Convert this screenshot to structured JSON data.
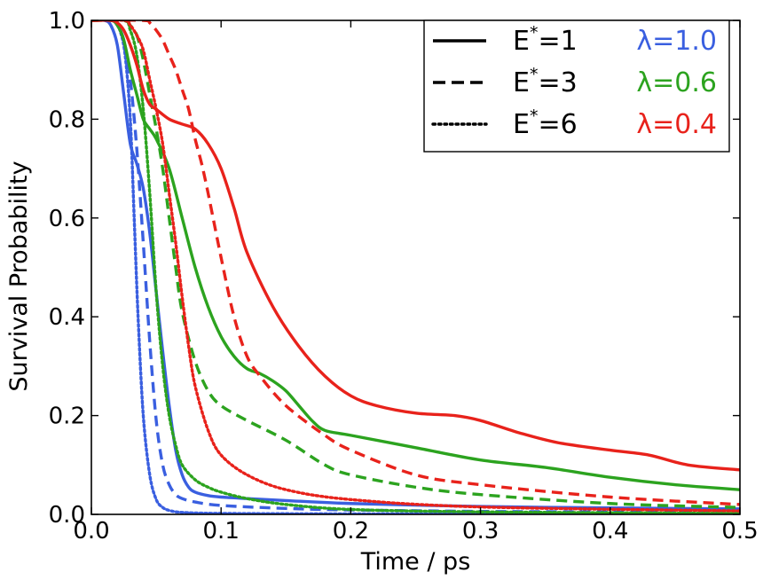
{
  "chart_data": {
    "type": "line",
    "title": "",
    "xlabel": "Time / ps",
    "ylabel": "Survival Probability",
    "xlim": [
      0.0,
      0.5
    ],
    "ylim": [
      0.0,
      1.0
    ],
    "grid": false,
    "x_ticks": [
      0.0,
      0.1,
      0.2,
      0.3,
      0.4,
      0.5
    ],
    "x_tick_labels": [
      "0.0",
      "0.1",
      "0.2",
      "0.3",
      "0.4",
      "0.5"
    ],
    "y_ticks": [
      0.0,
      0.2,
      0.4,
      0.6,
      0.8,
      1.0
    ],
    "y_tick_labels": [
      "0.0",
      "0.2",
      "0.4",
      "0.6",
      "0.8",
      "1.0"
    ],
    "legend": {
      "placement": "top-right",
      "style_entries": [
        {
          "label": "E*=1",
          "base": "E",
          "sup": "*",
          "rest": "=1",
          "style": "solid"
        },
        {
          "label": "E*=3",
          "base": "E",
          "sup": "*",
          "rest": "=3",
          "style": "dashed"
        },
        {
          "label": "E*=6",
          "base": "E",
          "sup": "*",
          "rest": "=6",
          "style": "dotted"
        }
      ],
      "color_entries": [
        {
          "label": "λ=1.0",
          "color": "#3a5fe0"
        },
        {
          "label": "λ=0.6",
          "color": "#2ca31f"
        },
        {
          "label": "λ=0.4",
          "color": "#e8221b"
        }
      ]
    },
    "series": [
      {
        "name": "E*=1, λ=1.0",
        "color": "#3a5fe0",
        "style": "solid",
        "x": [
          0,
          0.01,
          0.015,
          0.02,
          0.025,
          0.03,
          0.035,
          0.04,
          0.045,
          0.05,
          0.055,
          0.06,
          0.065,
          0.07,
          0.075,
          0.08,
          0.09,
          0.1,
          0.12,
          0.15,
          0.2,
          0.3,
          0.4,
          0.5
        ],
        "y": [
          1.0,
          1.0,
          0.99,
          0.95,
          0.85,
          0.75,
          0.71,
          0.66,
          0.57,
          0.45,
          0.33,
          0.22,
          0.13,
          0.08,
          0.055,
          0.045,
          0.038,
          0.035,
          0.032,
          0.028,
          0.022,
          0.016,
          0.013,
          0.011
        ]
      },
      {
        "name": "E*=3, λ=1.0",
        "color": "#3a5fe0",
        "style": "dashed",
        "x": [
          0,
          0.015,
          0.02,
          0.025,
          0.03,
          0.035,
          0.04,
          0.045,
          0.05,
          0.055,
          0.06,
          0.065,
          0.07,
          0.08,
          0.1,
          0.15,
          0.2,
          0.3,
          0.4,
          0.5
        ],
        "y": [
          1.0,
          1.0,
          0.99,
          0.96,
          0.88,
          0.74,
          0.55,
          0.35,
          0.19,
          0.1,
          0.06,
          0.04,
          0.032,
          0.025,
          0.018,
          0.012,
          0.009,
          0.006,
          0.005,
          0.004
        ]
      },
      {
        "name": "E*=6, λ=1.0",
        "color": "#3a5fe0",
        "style": "dotted",
        "x": [
          0,
          0.018,
          0.022,
          0.026,
          0.03,
          0.033,
          0.036,
          0.04,
          0.045,
          0.05,
          0.055,
          0.06,
          0.07,
          0.1,
          0.2,
          0.3,
          0.5
        ],
        "y": [
          1.0,
          1.0,
          0.98,
          0.93,
          0.8,
          0.6,
          0.4,
          0.2,
          0.08,
          0.03,
          0.014,
          0.008,
          0.004,
          0.002,
          0.001,
          0.001,
          0.001
        ]
      },
      {
        "name": "E*=1, λ=0.6",
        "color": "#2ca31f",
        "style": "solid",
        "x": [
          0,
          0.015,
          0.02,
          0.025,
          0.03,
          0.035,
          0.04,
          0.045,
          0.05,
          0.06,
          0.07,
          0.08,
          0.09,
          0.1,
          0.11,
          0.12,
          0.13,
          0.14,
          0.15,
          0.16,
          0.17,
          0.18,
          0.2,
          0.25,
          0.3,
          0.35,
          0.4,
          0.45,
          0.5
        ],
        "y": [
          1.0,
          1.0,
          0.99,
          0.96,
          0.9,
          0.85,
          0.8,
          0.78,
          0.76,
          0.7,
          0.6,
          0.5,
          0.42,
          0.36,
          0.32,
          0.295,
          0.285,
          0.27,
          0.25,
          0.22,
          0.19,
          0.17,
          0.16,
          0.135,
          0.11,
          0.095,
          0.075,
          0.06,
          0.05
        ]
      },
      {
        "name": "E*=3, λ=0.6",
        "color": "#2ca31f",
        "style": "dashed",
        "x": [
          0,
          0.025,
          0.03,
          0.035,
          0.04,
          0.045,
          0.05,
          0.055,
          0.06,
          0.065,
          0.07,
          0.08,
          0.09,
          0.1,
          0.12,
          0.15,
          0.18,
          0.2,
          0.25,
          0.3,
          0.4,
          0.5
        ],
        "y": [
          1.0,
          1.0,
          0.99,
          0.97,
          0.92,
          0.85,
          0.78,
          0.7,
          0.6,
          0.5,
          0.41,
          0.31,
          0.25,
          0.22,
          0.19,
          0.15,
          0.1,
          0.08,
          0.055,
          0.04,
          0.022,
          0.014
        ]
      },
      {
        "name": "E*=6, λ=0.6",
        "color": "#2ca31f",
        "style": "dotted",
        "x": [
          0,
          0.025,
          0.03,
          0.035,
          0.04,
          0.045,
          0.05,
          0.055,
          0.06,
          0.065,
          0.07,
          0.08,
          0.09,
          0.1,
          0.12,
          0.15,
          0.2,
          0.3,
          0.5
        ],
        "y": [
          1.0,
          1.0,
          0.98,
          0.93,
          0.82,
          0.65,
          0.45,
          0.3,
          0.2,
          0.14,
          0.1,
          0.07,
          0.055,
          0.045,
          0.032,
          0.02,
          0.01,
          0.005,
          0.002
        ]
      },
      {
        "name": "E*=1, λ=0.4",
        "color": "#e8221b",
        "style": "solid",
        "x": [
          0,
          0.015,
          0.02,
          0.025,
          0.03,
          0.035,
          0.04,
          0.045,
          0.05,
          0.06,
          0.07,
          0.08,
          0.09,
          0.1,
          0.11,
          0.12,
          0.14,
          0.16,
          0.18,
          0.2,
          0.22,
          0.25,
          0.28,
          0.3,
          0.33,
          0.36,
          0.4,
          0.43,
          0.46,
          0.5
        ],
        "y": [
          1.0,
          1.0,
          0.995,
          0.98,
          0.95,
          0.91,
          0.86,
          0.83,
          0.82,
          0.8,
          0.79,
          0.78,
          0.75,
          0.7,
          0.62,
          0.53,
          0.42,
          0.34,
          0.28,
          0.24,
          0.22,
          0.205,
          0.2,
          0.19,
          0.165,
          0.145,
          0.13,
          0.12,
          0.1,
          0.09
        ]
      },
      {
        "name": "E*=3, λ=0.4",
        "color": "#e8221b",
        "style": "dashed",
        "x": [
          0,
          0.04,
          0.045,
          0.05,
          0.055,
          0.06,
          0.065,
          0.07,
          0.075,
          0.08,
          0.085,
          0.09,
          0.1,
          0.11,
          0.12,
          0.13,
          0.15,
          0.18,
          0.2,
          0.25,
          0.3,
          0.4,
          0.5
        ],
        "y": [
          1.0,
          1.0,
          0.995,
          0.98,
          0.96,
          0.93,
          0.9,
          0.86,
          0.82,
          0.76,
          0.71,
          0.65,
          0.52,
          0.4,
          0.32,
          0.28,
          0.22,
          0.16,
          0.13,
          0.08,
          0.06,
          0.035,
          0.02
        ]
      },
      {
        "name": "E*=6, λ=0.4",
        "color": "#e8221b",
        "style": "dotted",
        "x": [
          0,
          0.025,
          0.03,
          0.035,
          0.04,
          0.045,
          0.05,
          0.055,
          0.06,
          0.065,
          0.07,
          0.075,
          0.08,
          0.09,
          0.1,
          0.12,
          0.15,
          0.2,
          0.3,
          0.5
        ],
        "y": [
          1.0,
          1.0,
          0.99,
          0.97,
          0.94,
          0.88,
          0.82,
          0.75,
          0.65,
          0.55,
          0.44,
          0.34,
          0.26,
          0.17,
          0.12,
          0.08,
          0.05,
          0.03,
          0.015,
          0.007
        ]
      }
    ]
  }
}
